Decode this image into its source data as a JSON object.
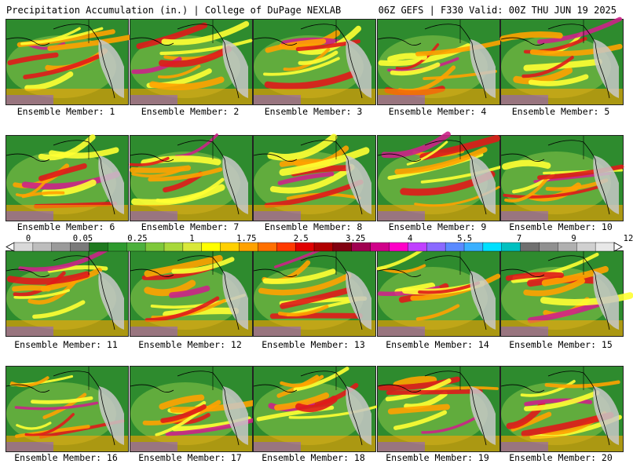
{
  "header": {
    "left_title": "Precipitation Accumulation (in.) | College of DuPage NEXLAB",
    "right_title": "06Z GEFS | F330 Valid: 00Z THU JUN 19 2025"
  },
  "colorbar": {
    "labels": [
      "0",
      "0.05",
      "0.25",
      "1",
      "1.75",
      "2.5",
      "3.25",
      "4",
      "5.5",
      "7",
      "9",
      "12"
    ],
    "colors": [
      "#d9d9d9",
      "#bdbdbd",
      "#9a9a9a",
      "#7a7a7a",
      "#1f7a1f",
      "#2e9a2e",
      "#4cb03c",
      "#7ec83a",
      "#a8d83a",
      "#d9e83a",
      "#ffff00",
      "#ffd000",
      "#ffa200",
      "#ff7000",
      "#ff3a00",
      "#e00000",
      "#b00000",
      "#800010",
      "#a00050",
      "#d0008a",
      "#ff00c8",
      "#c040ff",
      "#8a6aff",
      "#5a8aff",
      "#3ab0ff",
      "#00e0ff",
      "#00c0c0",
      "#707070",
      "#909090",
      "#b0b0b0",
      "#d0d0d0",
      "#e8e8e8"
    ]
  },
  "map_palette": {
    "ocean": "#2e8b2e",
    "light_green": "#8cc84b",
    "yellow": "#ffff33",
    "orange": "#ffa200",
    "red": "#e01a1a",
    "magenta": "#cc2288",
    "purple": "#8a5ad8",
    "dry_land": "#c8c8c8",
    "coast": "#000000"
  },
  "members": [
    {
      "label": "Ensemble Member: 1"
    },
    {
      "label": "Ensemble Member: 2"
    },
    {
      "label": "Ensemble Member: 3"
    },
    {
      "label": "Ensemble Member: 4"
    },
    {
      "label": "Ensemble Member: 5"
    },
    {
      "label": "Ensemble Member: 6"
    },
    {
      "label": "Ensemble Member: 7"
    },
    {
      "label": "Ensemble Member: 8"
    },
    {
      "label": "Ensemble Member: 9"
    },
    {
      "label": "Ensemble Member: 10"
    },
    {
      "label": "Ensemble Member: 11"
    },
    {
      "label": "Ensemble Member: 12"
    },
    {
      "label": "Ensemble Member: 13"
    },
    {
      "label": "Ensemble Member: 14"
    },
    {
      "label": "Ensemble Member: 15"
    },
    {
      "label": "Ensemble Member: 16"
    },
    {
      "label": "Ensemble Member: 17"
    },
    {
      "label": "Ensemble Member: 18"
    },
    {
      "label": "Ensemble Member: 19"
    },
    {
      "label": "Ensemble Member: 20"
    }
  ]
}
